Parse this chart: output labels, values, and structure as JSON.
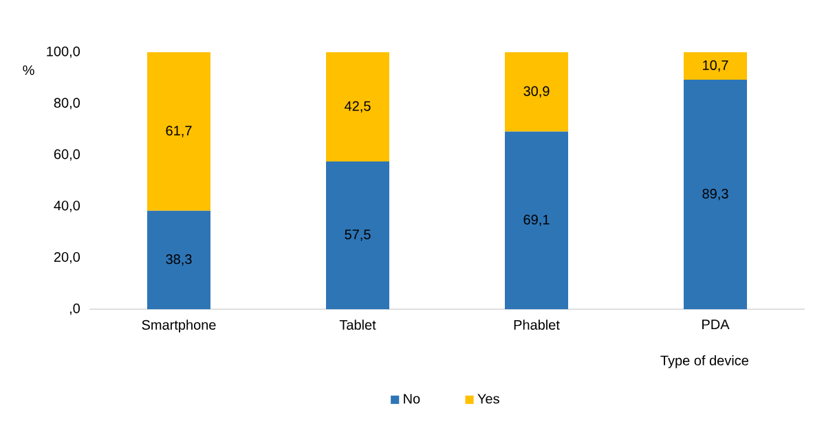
{
  "chart_data": {
    "type": "bar",
    "stacked": true,
    "xlabel": "Type of device",
    "ylabel": "%",
    "categories": [
      "Smartphone",
      "Tablet",
      "Phablet",
      "PDA"
    ],
    "series": [
      {
        "name": "No",
        "color": "#2e75b6",
        "values": [
          38.3,
          57.5,
          69.1,
          89.3
        ],
        "value_labels": [
          "38,3",
          "57,5",
          "69,1",
          "89,3"
        ]
      },
      {
        "name": "Yes",
        "color": "#ffc000",
        "values": [
          61.7,
          42.5,
          30.9,
          10.7
        ],
        "value_labels": [
          "61,7",
          "42,5",
          "30,9",
          "10,7"
        ]
      }
    ],
    "ylim": [
      0,
      100
    ],
    "yticks": [
      {
        "value": 0,
        "label": ",0"
      },
      {
        "value": 20,
        "label": "20,0"
      },
      {
        "value": 40,
        "label": "40,0"
      },
      {
        "value": 60,
        "label": "60,0"
      },
      {
        "value": 80,
        "label": "80,0"
      },
      {
        "value": 100,
        "label": "100,0"
      }
    ],
    "grid": false,
    "legend": "bottom"
  }
}
